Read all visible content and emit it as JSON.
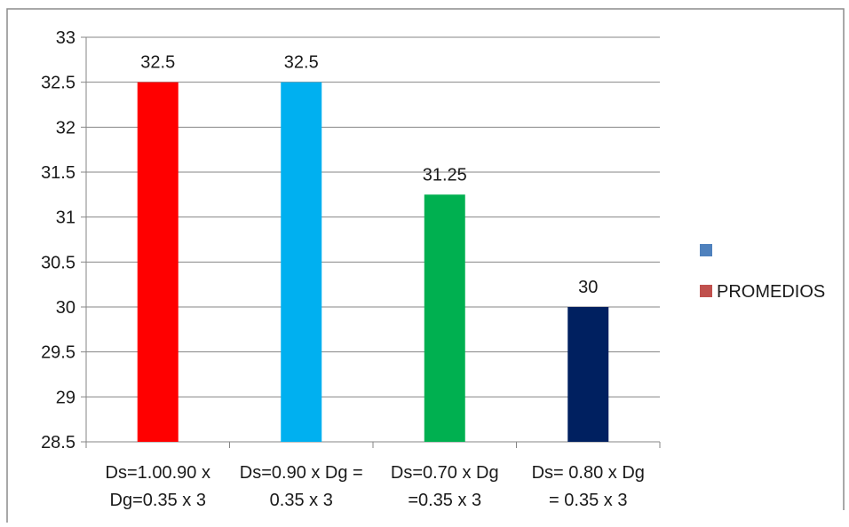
{
  "chart_data": {
    "type": "bar",
    "categories": [
      [
        "Ds=1.00.90 x",
        "Dg=0.35 x 3"
      ],
      [
        "Ds=0.90 x Dg =",
        "0.35 x 3"
      ],
      [
        "Ds=0.70 x Dg",
        "=0.35 x 3"
      ],
      [
        "Ds= 0.80 x Dg",
        "= 0.35 x 3"
      ]
    ],
    "values": [
      32.5,
      32.5,
      31.25,
      30
    ],
    "data_labels": [
      "32.5",
      "32.5",
      "31.25",
      "30"
    ],
    "bar_colors": [
      "#ff0000",
      "#00b0f0",
      "#00b050",
      "#002060"
    ],
    "ylim": [
      28.5,
      33
    ],
    "yticks": [
      "33",
      "32.5",
      "32",
      "31.5",
      "31",
      "30.5",
      "30",
      "29.5",
      "29",
      "28.5"
    ],
    "ytick_values": [
      33,
      32.5,
      32,
      31.5,
      31,
      30.5,
      30,
      29.5,
      29,
      28.5
    ],
    "grid": true,
    "legend_position": "right",
    "legend": [
      {
        "label": "",
        "color": "#4f81bd"
      },
      {
        "label": "PROMEDIOS",
        "color": "#c0504d"
      }
    ]
  },
  "colors": {
    "grid": "#868686",
    "axis": "#868686",
    "frame": "#8c8c8c"
  }
}
